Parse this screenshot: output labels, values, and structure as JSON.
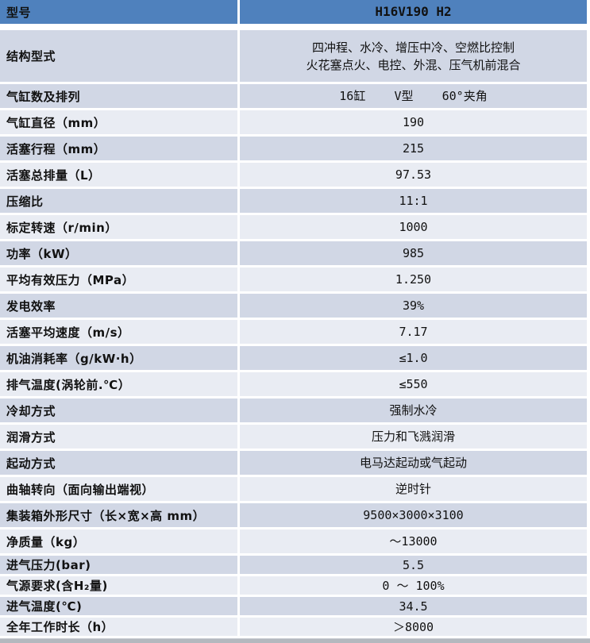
{
  "colors": {
    "header_bg": "#4f81bd",
    "row_dark": "#d1d7e5",
    "row_light": "#e9ecf3",
    "bottom_bar": "#b4b8be",
    "text": "#111111"
  },
  "header": {
    "label": "型号",
    "value": "H16V190 H2"
  },
  "rows": [
    {
      "label": "结构型式",
      "value": "四冲程、水冷、增压中冷、空燃比控制\n火花塞点火、电控、外混、压气机前混合",
      "shade": "dark",
      "size": "tall"
    },
    {
      "label": "气缸数及排列",
      "value": "16缸    V型    60°夹角",
      "shade": "dark",
      "size": "normal"
    },
    {
      "label": "气缸直径（mm）",
      "value": "190",
      "shade": "light",
      "size": "normal"
    },
    {
      "label": "活塞行程（mm）",
      "value": "215",
      "shade": "dark",
      "size": "normal"
    },
    {
      "label": "活塞总排量（L）",
      "value": "97.53",
      "shade": "light",
      "size": "normal"
    },
    {
      "label": "压缩比",
      "value": "11:1",
      "shade": "dark",
      "size": "normal"
    },
    {
      "label": "标定转速（r/min）",
      "value": "1000",
      "shade": "light",
      "size": "normal"
    },
    {
      "label": "功率（kW）",
      "value": "985",
      "shade": "dark",
      "size": "normal"
    },
    {
      "label": "平均有效压力（MPa）",
      "value": "1.250",
      "shade": "light",
      "size": "normal"
    },
    {
      "label": "发电效率",
      "value": "39%",
      "shade": "dark",
      "size": "normal"
    },
    {
      "label": "活塞平均速度（m/s）",
      "value": "7.17",
      "shade": "light",
      "size": "normal"
    },
    {
      "label": "机油消耗率（g/kW·h）",
      "value": "≤1.0",
      "shade": "dark",
      "size": "normal"
    },
    {
      "label": "排气温度(涡轮前.℃）",
      "value": "≤550",
      "shade": "light",
      "size": "normal"
    },
    {
      "label": "冷却方式",
      "value": "强制水冷",
      "shade": "dark",
      "size": "normal"
    },
    {
      "label": "润滑方式",
      "value": "压力和飞溅润滑",
      "shade": "light",
      "size": "normal"
    },
    {
      "label": "起动方式",
      "value": "电马达起动或气起动",
      "shade": "dark",
      "size": "normal"
    },
    {
      "label": "曲轴转向（面向输出端视）",
      "value": "逆时针",
      "shade": "light",
      "size": "normal"
    },
    {
      "label": "集装箱外形尺寸（长×宽×高 mm）",
      "value": "9500×3000×3100",
      "shade": "dark",
      "size": "normal"
    },
    {
      "label": "净质量（kg）",
      "value": "～13000",
      "shade": "light",
      "size": "normal"
    },
    {
      "label": "进气压力(bar)",
      "value": "5.5",
      "shade": "dark",
      "size": "short"
    },
    {
      "label": "气源要求(含H₂量)",
      "value": "0 ～ 100%",
      "shade": "light",
      "size": "short"
    },
    {
      "label": "进气温度(℃)",
      "value": "34.5",
      "shade": "dark",
      "size": "short"
    },
    {
      "label": "全年工作时长（h）",
      "value": "＞8000",
      "shade": "light",
      "size": "short"
    }
  ]
}
